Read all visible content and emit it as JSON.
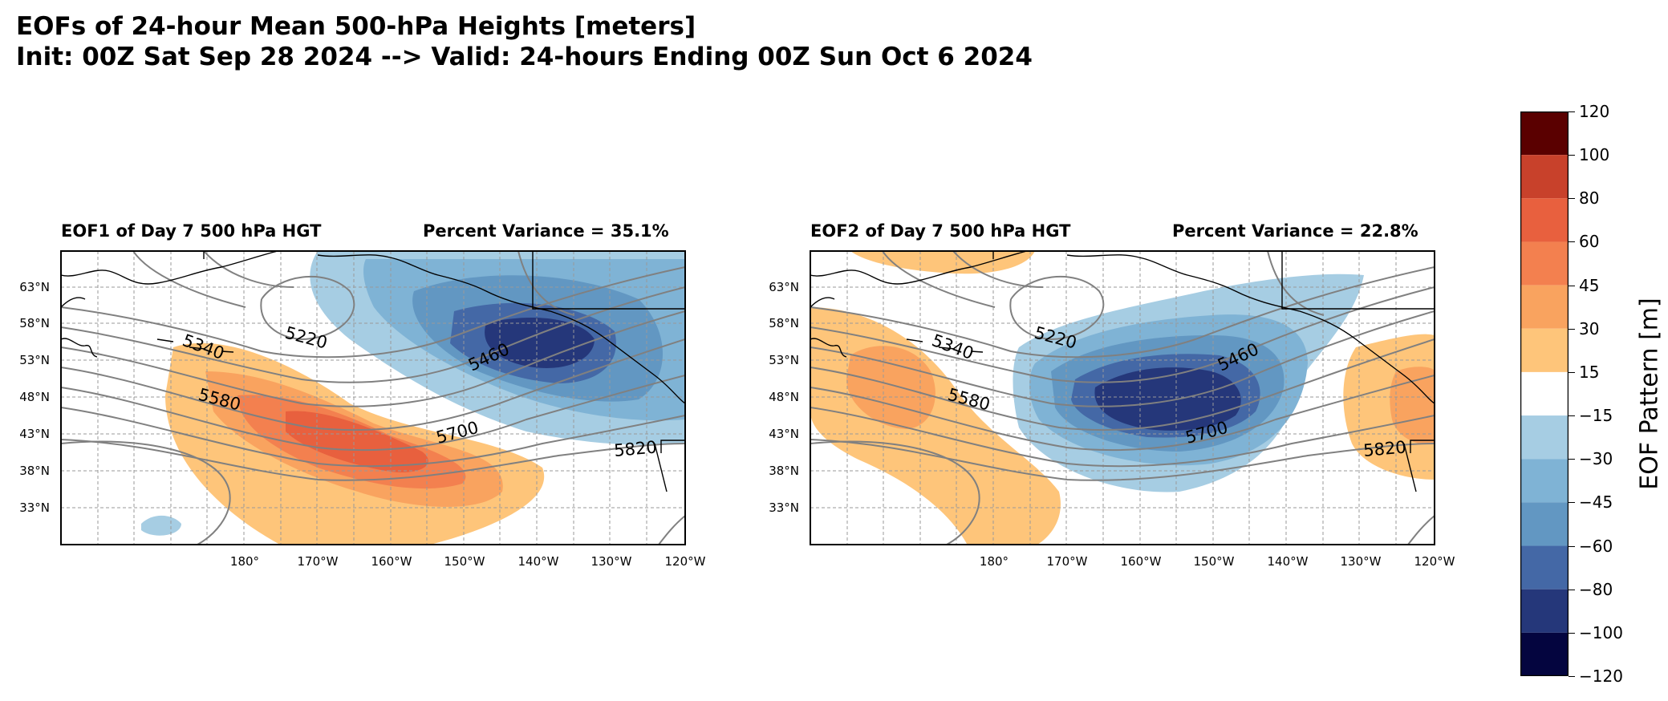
{
  "figure": {
    "title_line1": "EOFs of 24-hour Mean 500-hPa Heights [meters]",
    "title_line2": "Init: 00Z Sat Sep 28 2024 --> Valid: 24-hours Ending 00Z Sun Oct 6 2024"
  },
  "panels": [
    {
      "left_title": "EOF1 of Day 7 500 hPa HGT",
      "right_title": "Percent Variance = 35.1%",
      "contour_labels": [
        "5220",
        "5340",
        "5460",
        "5580",
        "5700",
        "5820"
      ]
    },
    {
      "left_title": "EOF2 of Day 7 500 hPa HGT",
      "right_title": "Percent Variance = 22.8%",
      "contour_labels": [
        "5220",
        "5340",
        "5460",
        "5580",
        "5700",
        "5820"
      ]
    }
  ],
  "axes": {
    "lat_ticks": [
      "63°N",
      "58°N",
      "53°N",
      "48°N",
      "43°N",
      "38°N",
      "33°N"
    ],
    "lon_ticks": [
      "180°",
      "170°W",
      "160°W",
      "150°W",
      "140°W",
      "130°W",
      "120°W"
    ]
  },
  "colorbar": {
    "label": "EOF Pattern [m]",
    "ticks": [
      "120",
      "100",
      "80",
      "60",
      "45",
      "30",
      "15",
      "−15",
      "−30",
      "−45",
      "−60",
      "−80",
      "−100",
      "−120"
    ],
    "colors": [
      "#5a0000",
      "#c8412b",
      "#e8603e",
      "#f3804f",
      "#f9a35f",
      "#fec57a",
      "#ffffff",
      "#a6cde3",
      "#7fb3d5",
      "#6297c2",
      "#4468a6",
      "#25377a",
      "#04053f"
    ]
  },
  "colors": {
    "warm_1": "#fec57a",
    "warm_2": "#f9a35f",
    "warm_3": "#f3804f",
    "warm_4": "#e8603e",
    "cool_1": "#a6cde3",
    "cool_2": "#7fb3d5",
    "cool_3": "#6297c2",
    "cool_4": "#4468a6",
    "cool_5": "#25377a",
    "contour": "#808080",
    "grid": "#999999"
  }
}
